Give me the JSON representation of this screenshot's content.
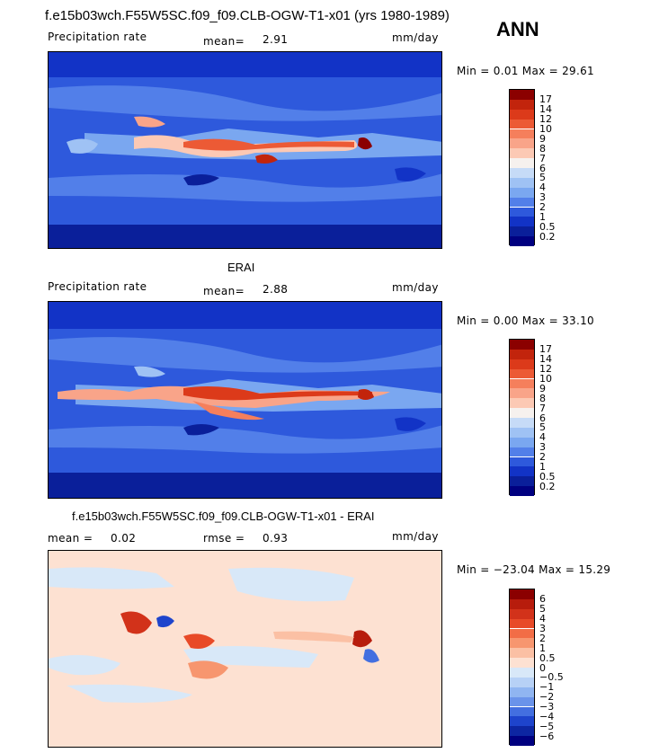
{
  "header": {
    "title": "f.e15b03wch.F55W5SC.f09_f09.CLB-OGW-T1-x01 (yrs 1980-1989)",
    "season": "ANN"
  },
  "panels": [
    {
      "id": "model",
      "subtitle": "",
      "left_label": "Precipitation rate",
      "stat_label": "mean=",
      "stat_value": "2.91",
      "units": "mm/day",
      "minmax": "Min =    0.01  Max =   29.61",
      "colorbar_ticks": [
        "17",
        "14",
        "12",
        "10",
        "9",
        "8",
        "7",
        "6",
        "5",
        "4",
        "3",
        "2",
        "1",
        "0.5",
        "0.2"
      ],
      "colorbar_colors": [
        "#8b0000",
        "#c2240c",
        "#dc3a1a",
        "#ec5a35",
        "#f57f5c",
        "#f9a489",
        "#fcc9b4",
        "#f6f1ee",
        "#c6dbf7",
        "#9fc2f4",
        "#7aa7f0",
        "#527fe9",
        "#2e59dc",
        "#1233c6",
        "#0a1f9a",
        "#000080"
      ]
    },
    {
      "id": "obs",
      "subtitle": "ERAI",
      "left_label": "Precipitation rate",
      "stat_label": "mean=",
      "stat_value": "2.88",
      "units": "mm/day",
      "minmax": "Min =    0.00  Max =   33.10",
      "colorbar_ticks": [
        "17",
        "14",
        "12",
        "10",
        "9",
        "8",
        "7",
        "6",
        "5",
        "4",
        "3",
        "2",
        "1",
        "0.5",
        "0.2"
      ],
      "colorbar_colors": [
        "#8b0000",
        "#c2240c",
        "#dc3a1a",
        "#ec5a35",
        "#f57f5c",
        "#f9a489",
        "#fcc9b4",
        "#f6f1ee",
        "#c6dbf7",
        "#9fc2f4",
        "#7aa7f0",
        "#527fe9",
        "#2e59dc",
        "#1233c6",
        "#0a1f9a",
        "#000080"
      ]
    },
    {
      "id": "diff",
      "subtitle": "f.e15b03wch.F55W5SC.f09_f09.CLB-OGW-T1-x01 - ERAI",
      "left_label": "mean =",
      "left_value": "0.02",
      "stat_label": "rmse =",
      "stat_value": "0.93",
      "units": "mm/day",
      "minmax": "Min = −23.04  Max =   15.29",
      "colorbar_ticks": [
        "6",
        "5",
        "4",
        "3",
        "2",
        "1",
        "0.5",
        "0",
        "−0.5",
        "−1",
        "−2",
        "−3",
        "−4",
        "−5",
        "−6"
      ],
      "colorbar_colors": [
        "#8b0000",
        "#b71c0c",
        "#d2321a",
        "#e84a28",
        "#f26d46",
        "#f7966f",
        "#fbc0a4",
        "#fde1d2",
        "#d8e8f8",
        "#b7d1f6",
        "#90b5f1",
        "#6a93ea",
        "#436fe0",
        "#1e44cc",
        "#0d26a2",
        "#000080"
      ]
    }
  ],
  "chart_data": [
    {
      "type": "heatmap",
      "title": "f.e15b03wch.F55W5SC.f09_f09.CLB-OGW-T1-x01 (yrs 1980-1989)",
      "field": "Precipitation rate",
      "units": "mm/day",
      "mean": 2.91,
      "min": 0.01,
      "max": 29.61,
      "levels": [
        0.2,
        0.5,
        1,
        2,
        3,
        4,
        5,
        6,
        7,
        8,
        9,
        10,
        12,
        14,
        17
      ],
      "projection": "cylindrical equidistant, Pacific-centered"
    },
    {
      "type": "heatmap",
      "title": "ERAI",
      "field": "Precipitation rate",
      "units": "mm/day",
      "mean": 2.88,
      "min": 0.0,
      "max": 33.1,
      "levels": [
        0.2,
        0.5,
        1,
        2,
        3,
        4,
        5,
        6,
        7,
        8,
        9,
        10,
        12,
        14,
        17
      ],
      "projection": "cylindrical equidistant, Pacific-centered"
    },
    {
      "type": "heatmap",
      "title": "f.e15b03wch.F55W5SC.f09_f09.CLB-OGW-T1-x01 - ERAI",
      "units": "mm/day",
      "mean": 0.02,
      "rmse": 0.93,
      "min": -23.04,
      "max": 15.29,
      "levels": [
        -6,
        -5,
        -4,
        -3,
        -2,
        -1,
        -0.5,
        0,
        0.5,
        1,
        2,
        3,
        4,
        5,
        6
      ],
      "projection": "cylindrical equidistant, Pacific-centered"
    }
  ]
}
